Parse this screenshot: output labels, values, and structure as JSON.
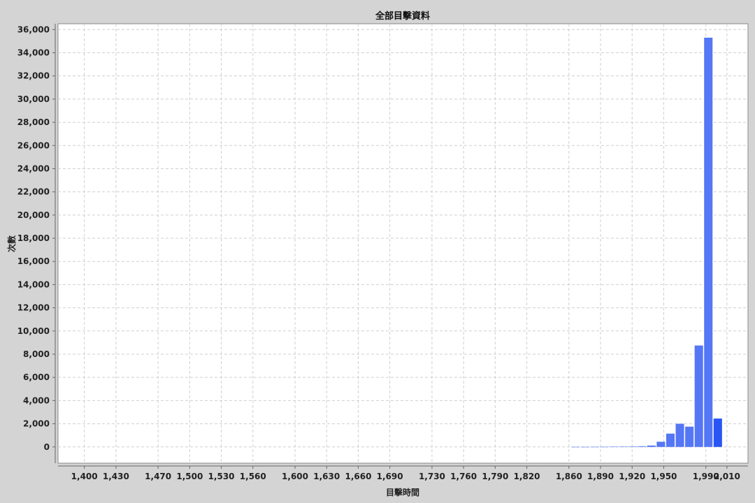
{
  "chart_data": {
    "type": "bar",
    "title": "全部目擊資料",
    "xlabel": "目擊時間",
    "ylabel": "次數",
    "xlim": [
      1375,
      2030
    ],
    "ylim": [
      -1400,
      36500
    ],
    "x_ticks": [
      "1,400",
      "1,430",
      "1,470",
      "1,500",
      "1,530",
      "1,560",
      "1,600",
      "1,630",
      "1,660",
      "1,690",
      "1,730",
      "1,760",
      "1,790",
      "1,820",
      "1,860",
      "1,890",
      "1,920",
      "1,950",
      "1,990",
      "2,010"
    ],
    "x_tick_values": [
      1400,
      1430,
      1470,
      1500,
      1530,
      1560,
      1600,
      1630,
      1660,
      1690,
      1730,
      1760,
      1790,
      1820,
      1860,
      1890,
      1920,
      1950,
      1990,
      2010
    ],
    "y_ticks": [
      "0",
      "2,000",
      "4,000",
      "6,000",
      "8,000",
      "10,000",
      "12,000",
      "14,000",
      "16,000",
      "18,000",
      "20,000",
      "22,000",
      "24,000",
      "26,000",
      "28,000",
      "30,000",
      "32,000",
      "34,000",
      "36,000"
    ],
    "y_tick_values": [
      0,
      2000,
      4000,
      6000,
      8000,
      10000,
      12000,
      14000,
      16000,
      18000,
      20000,
      22000,
      24000,
      26000,
      28000,
      30000,
      32000,
      34000,
      36000
    ],
    "grid": true,
    "bin_width": 9,
    "bins": [
      {
        "x": 1862,
        "value": 5
      },
      {
        "x": 1871,
        "value": 5
      },
      {
        "x": 1880,
        "value": 10
      },
      {
        "x": 1889,
        "value": 10
      },
      {
        "x": 1898,
        "value": 20
      },
      {
        "x": 1907,
        "value": 30
      },
      {
        "x": 1916,
        "value": 40
      },
      {
        "x": 1925,
        "value": 60
      },
      {
        "x": 1934,
        "value": 120
      },
      {
        "x": 1943,
        "value": 450
      },
      {
        "x": 1952,
        "value": 1150
      },
      {
        "x": 1961,
        "value": 2000
      },
      {
        "x": 1970,
        "value": 1750
      },
      {
        "x": 1979,
        "value": 8750
      },
      {
        "x": 1988,
        "value": 35300
      },
      {
        "x": 1997,
        "value": 2450
      }
    ],
    "colors": {
      "bar": "#5577f5",
      "bar_last": "#2a55f5",
      "plot_bg": "#ffffff",
      "page_bg": "#d4d4d4",
      "grid": "#cfcfcf"
    }
  }
}
